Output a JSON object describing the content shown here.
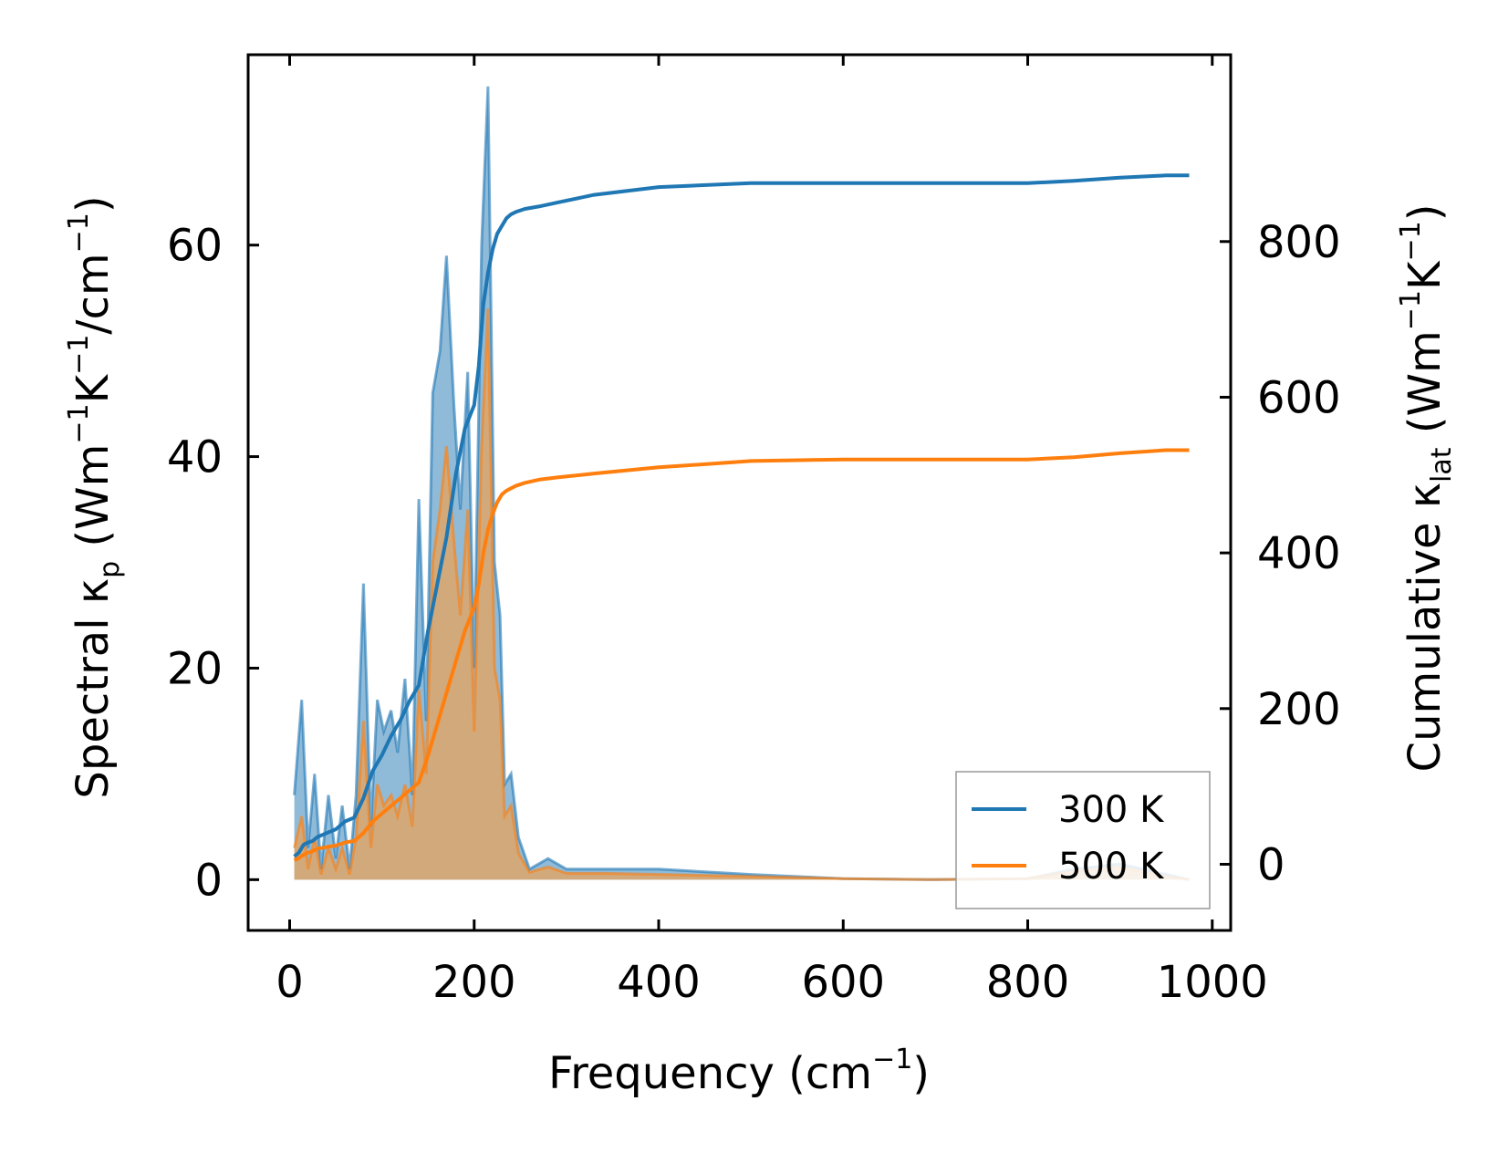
{
  "chart_data": {
    "type": "line",
    "xlabel": "Frequency",
    "xlabel_unit": "cm",
    "xlim": [
      -45,
      1020
    ],
    "x_ticks": [
      0,
      200,
      400,
      600,
      800,
      1000
    ],
    "ylabel_left": {
      "prefix": "Spectral κ",
      "sub": "p",
      "unit_open": " (Wm",
      "u1": "K",
      "u2": "/cm",
      "close": ")"
    },
    "ylabel_right": {
      "prefix": "Cumulative κ",
      "sub": "lat",
      "unit_open": " (Wm",
      "u1": "K",
      "close": ")"
    },
    "superscript": "−1",
    "ylim_left": [
      -4.8,
      78
    ],
    "ylim_right": [
      -85,
      1040
    ],
    "y_ticks_left": [
      0,
      20,
      40,
      60
    ],
    "y_ticks_right": [
      0,
      200,
      400,
      600,
      800
    ],
    "colors": {
      "s300": "#1f77b4",
      "s500": "#ff7f0e",
      "fill300": "#1f77b4",
      "fill500": "#ff9d3a"
    },
    "legend": {
      "placement": "lower-right",
      "entries": [
        "300 K",
        "500 K"
      ]
    },
    "spectral": [
      {
        "name": "300 K",
        "x": [
          5,
          13,
          20,
          27,
          34,
          42,
          50,
          57,
          65,
          72,
          80,
          88,
          95,
          102,
          110,
          117,
          125,
          133,
          140,
          148,
          155,
          163,
          170,
          178,
          185,
          193,
          200,
          208,
          215,
          222,
          228,
          233,
          240,
          248,
          260,
          280,
          300,
          340,
          400,
          500,
          600,
          700,
          800,
          850,
          900,
          950,
          975
        ],
        "values": [
          8,
          17,
          3,
          10,
          1,
          8,
          2,
          7,
          1,
          8,
          28,
          5,
          17,
          14,
          16,
          12,
          19,
          8,
          36,
          15,
          46,
          50,
          59,
          45,
          35,
          48,
          20,
          60,
          75,
          30,
          25,
          9,
          10,
          4,
          1,
          2,
          1,
          1,
          1,
          0.5,
          0.1,
          0,
          0.1,
          1,
          1.5,
          0.5,
          0
        ]
      },
      {
        "name": "500 K",
        "x": [
          5,
          13,
          20,
          27,
          34,
          42,
          50,
          57,
          65,
          72,
          80,
          88,
          95,
          102,
          110,
          117,
          125,
          133,
          140,
          148,
          155,
          163,
          170,
          178,
          185,
          193,
          200,
          208,
          215,
          222,
          228,
          233,
          240,
          248,
          260,
          280,
          300,
          340,
          400,
          500,
          600,
          700,
          800,
          850,
          900,
          950,
          975
        ],
        "values": [
          3,
          6,
          1,
          4,
          0.5,
          3,
          1,
          3,
          0.5,
          4,
          15,
          3,
          9,
          7,
          8,
          6,
          9,
          5,
          18,
          10,
          30,
          35,
          41,
          32,
          25,
          35,
          14,
          41,
          54,
          20,
          17,
          6,
          7,
          2.5,
          0.7,
          1.2,
          0.6,
          0.6,
          0.5,
          0.3,
          0.1,
          0,
          0.1,
          0.8,
          1.2,
          0.3,
          0
        ]
      }
    ],
    "cumulative": [
      {
        "name": "300 K",
        "x": [
          5,
          10,
          15,
          20,
          25,
          30,
          40,
          50,
          60,
          70,
          80,
          90,
          100,
          110,
          120,
          130,
          140,
          150,
          160,
          170,
          180,
          190,
          200,
          205,
          210,
          215,
          220,
          225,
          230,
          235,
          240,
          245,
          255,
          270,
          290,
          330,
          400,
          500,
          600,
          700,
          800,
          850,
          900,
          950,
          975
        ],
        "values": [
          10,
          15,
          25,
          28,
          30,
          35,
          40,
          45,
          55,
          60,
          85,
          120,
          140,
          165,
          185,
          210,
          230,
          300,
          360,
          420,
          500,
          560,
          590,
          640,
          720,
          760,
          790,
          810,
          820,
          830,
          835,
          838,
          842,
          845,
          850,
          860,
          870,
          875,
          875,
          875,
          875,
          878,
          882,
          885,
          885
        ]
      },
      {
        "name": "500 K",
        "x": [
          5,
          10,
          15,
          20,
          25,
          30,
          40,
          50,
          60,
          70,
          80,
          90,
          100,
          110,
          120,
          130,
          140,
          150,
          160,
          170,
          180,
          190,
          200,
          205,
          210,
          215,
          220,
          225,
          230,
          235,
          240,
          245,
          255,
          270,
          290,
          330,
          400,
          500,
          600,
          700,
          800,
          850,
          900,
          950,
          975
        ],
        "values": [
          5,
          8,
          12,
          15,
          17,
          20,
          22,
          24,
          28,
          30,
          40,
          55,
          65,
          75,
          85,
          95,
          105,
          140,
          180,
          220,
          260,
          300,
          330,
          360,
          400,
          430,
          450,
          465,
          475,
          480,
          483,
          486,
          490,
          494,
          497,
          502,
          510,
          518,
          520,
          520,
          520,
          523,
          528,
          532,
          532
        ]
      }
    ]
  }
}
